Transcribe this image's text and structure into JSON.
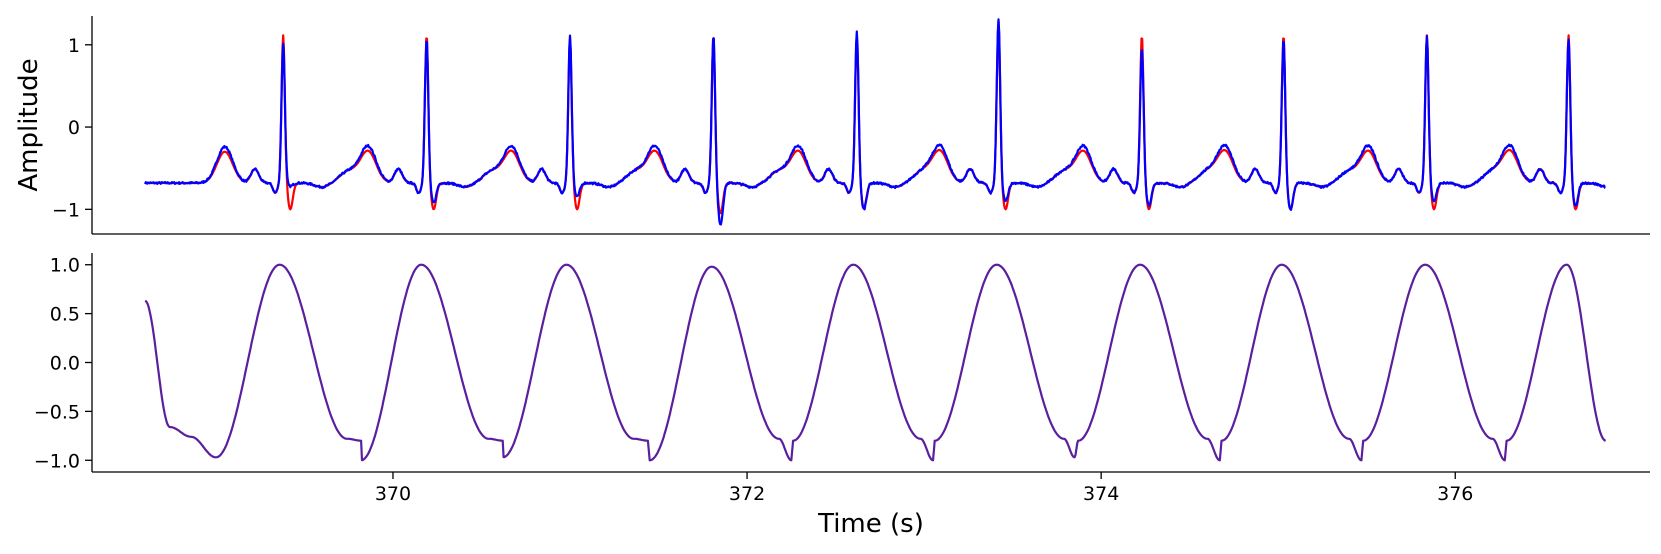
{
  "chart_data": [
    {
      "type": "line",
      "title": "",
      "xlabel": "",
      "ylabel": "Amplitude",
      "xlim": [
        368.3,
        377.1
      ],
      "ylim": [
        -1.3,
        1.35
      ],
      "yticks": [
        -1,
        0,
        1
      ],
      "ytick_labels": [
        "−1",
        "0",
        "1"
      ],
      "grid": false,
      "legend": "none",
      "x_start": 368.6,
      "x_end": 376.85,
      "r_peak_times": [
        369.38,
        370.19,
        371.0,
        371.81,
        372.62,
        373.42,
        374.23,
        375.03,
        375.84,
        376.64
      ],
      "series": [
        {
          "color": "#ff0000",
          "r_peak_amplitudes": [
            1.0,
            1.0,
            0.96,
            1.0,
            1.0,
            1.17,
            1.0,
            1.0,
            1.0,
            1.0
          ],
          "s_trough_amplitudes": [
            -1.0,
            -1.0,
            -1.0,
            -1.05,
            -0.98,
            -1.0,
            -1.0,
            -1.0,
            -1.0,
            -1.0
          ],
          "baseline": -0.68,
          "t_wave_amplitude": -0.3
        },
        {
          "color": "#0000ff",
          "r_peak_amplitudes": [
            0.9,
            0.95,
            1.0,
            1.0,
            1.05,
            1.2,
            0.85,
            0.95,
            1.0,
            0.95
          ],
          "s_trough_amplitudes": [
            -0.72,
            -0.92,
            -0.85,
            -1.18,
            -1.0,
            -0.9,
            -0.95,
            -1.0,
            -0.9,
            -0.95
          ],
          "baseline": -0.68,
          "t_wave_amplitude": -0.24
        }
      ]
    },
    {
      "type": "line",
      "title": "",
      "xlabel": "Time (s)",
      "ylabel": "",
      "xlim": [
        368.3,
        377.1
      ],
      "ylim": [
        -1.12,
        1.12
      ],
      "xticks": [
        370,
        372,
        374,
        376
      ],
      "xtick_labels": [
        "370",
        "372",
        "374",
        "376"
      ],
      "yticks": [
        -1.0,
        -0.5,
        0.0,
        0.5,
        1.0
      ],
      "ytick_labels": [
        "−1.0",
        "−0.5",
        "0.0",
        "0.5",
        "1.0"
      ],
      "grid": false,
      "legend": "none",
      "x_start": 368.6,
      "x_end": 376.85,
      "start_value": 0.63,
      "end_value": -0.8,
      "peak_times": [
        369.36,
        370.16,
        370.98,
        371.8,
        372.6,
        373.41,
        374.22,
        375.02,
        375.83,
        376.63
      ],
      "peak_values": [
        1.0,
        1.0,
        1.0,
        0.98,
        1.0,
        1.0,
        1.0,
        1.0,
        1.0,
        1.0
      ],
      "trough_times": [
        369.0,
        369.82,
        370.62,
        371.45,
        372.25,
        373.05,
        373.85,
        374.67,
        375.47,
        376.28
      ],
      "trough_values": [
        -0.97,
        -1.0,
        -0.97,
        -1.0,
        -1.0,
        -1.0,
        -0.97,
        -1.0,
        -1.0,
        -1.0
      ],
      "series": [
        {
          "color": "#5b1f9e"
        }
      ]
    }
  ]
}
